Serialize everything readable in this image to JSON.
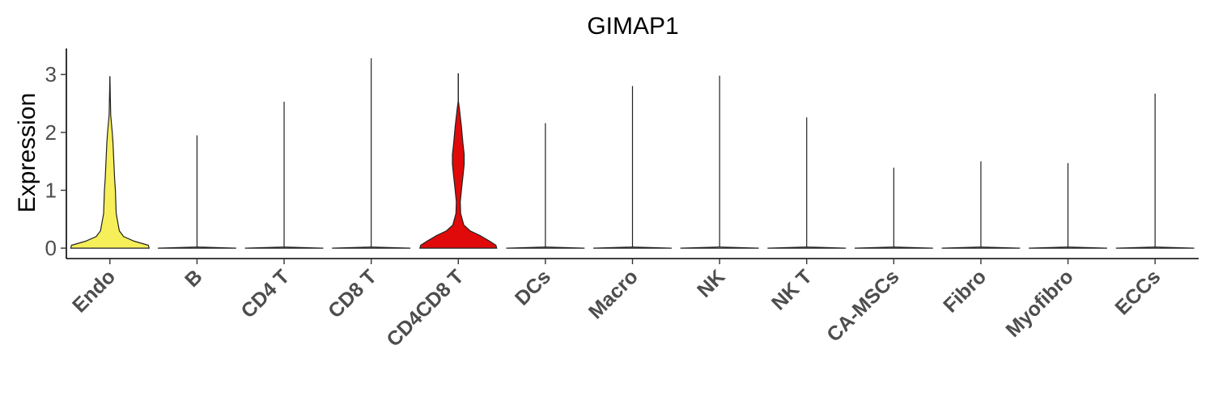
{
  "chart_data": {
    "type": "violin",
    "title": "GIMAP1",
    "xlabel": "",
    "ylabel": "Expression",
    "ylim": [
      -0.18,
      3.45
    ],
    "yticks": [
      0,
      1,
      2,
      3
    ],
    "grid": false,
    "legend": "none",
    "categories": [
      "Endo",
      "B",
      "CD4 T",
      "CD8 T",
      "CD4CD8 T",
      "DCs",
      "Macro",
      "NK",
      "NK T",
      "CA-MSCs",
      "Fibro",
      "Myofibro",
      "ECCs"
    ],
    "max_values": [
      2.97,
      1.95,
      2.53,
      3.28,
      3.02,
      2.16,
      2.8,
      2.98,
      2.26,
      1.39,
      1.5,
      1.47,
      2.67
    ],
    "fill_colors": [
      "#f6ef5a",
      "#ffffff",
      "#ffffff",
      "#ffffff",
      "#e00a0a",
      "#ffffff",
      "#ffffff",
      "#ffffff",
      "#ffffff",
      "#ffffff",
      "#ffffff",
      "#ffffff",
      "#ffffff"
    ],
    "density_profiles": {
      "Endo": [
        [
          0,
          1.0
        ],
        [
          0.05,
          0.98
        ],
        [
          0.12,
          0.62
        ],
        [
          0.2,
          0.35
        ],
        [
          0.3,
          0.24
        ],
        [
          0.45,
          0.2
        ],
        [
          0.6,
          0.16
        ],
        [
          0.8,
          0.15
        ],
        [
          1.0,
          0.14
        ],
        [
          1.2,
          0.12
        ],
        [
          1.5,
          0.1
        ],
        [
          1.8,
          0.08
        ],
        [
          2.0,
          0.06
        ],
        [
          2.3,
          0.02
        ],
        [
          2.97,
          0.0
        ]
      ],
      "CD4CD8 T": [
        [
          0,
          0.98
        ],
        [
          0.05,
          0.96
        ],
        [
          0.12,
          0.8
        ],
        [
          0.22,
          0.55
        ],
        [
          0.3,
          0.3
        ],
        [
          0.4,
          0.14
        ],
        [
          0.6,
          0.06
        ],
        [
          0.8,
          0.05
        ],
        [
          1.0,
          0.08
        ],
        [
          1.25,
          0.12
        ],
        [
          1.45,
          0.15
        ],
        [
          1.62,
          0.15
        ],
        [
          1.8,
          0.12
        ],
        [
          2.1,
          0.08
        ],
        [
          2.4,
          0.03
        ],
        [
          2.55,
          0.0
        ],
        [
          3.02,
          0.0
        ]
      ],
      "default": [
        [
          0,
          1.0
        ],
        [
          0.02,
          0.0
        ],
        [
          3.5,
          0.0
        ]
      ]
    }
  }
}
